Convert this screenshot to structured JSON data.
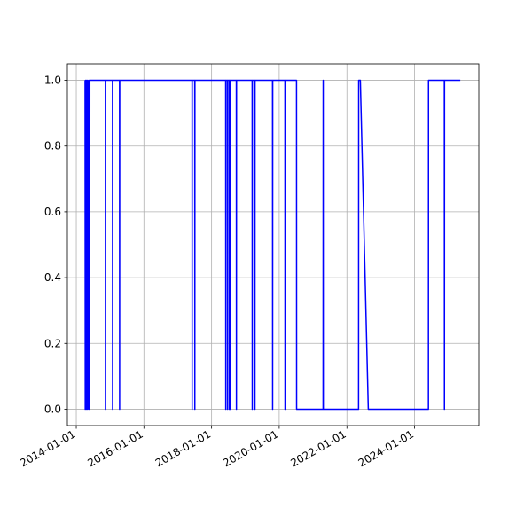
{
  "chart_data": {
    "type": "line",
    "x": [
      "2014-04-06",
      "2014-04-08",
      "2014-04-10",
      "2014-04-20",
      "2014-04-22",
      "2014-05-01",
      "2014-05-03",
      "2014-05-15",
      "2014-05-17",
      "2014-05-25",
      "2014-05-27",
      "2014-11-11",
      "2014-11-12",
      "2014-11-13",
      "2015-01-27",
      "2015-01-28",
      "2015-01-29",
      "2015-04-13",
      "2015-04-14",
      "2015-04-15",
      "2017-06-04",
      "2017-06-05",
      "2017-06-06",
      "2017-07-03",
      "2017-07-04",
      "2017-07-05",
      "2018-06-02",
      "2018-06-03",
      "2018-06-04",
      "2018-06-21",
      "2018-06-22",
      "2018-06-23",
      "2018-07-10",
      "2018-07-11",
      "2018-07-12",
      "2018-07-20",
      "2018-07-21",
      "2018-07-22",
      "2018-09-25",
      "2018-09-26",
      "2018-09-27",
      "2019-03-15",
      "2019-03-16",
      "2019-03-17",
      "2019-04-13",
      "2019-04-14",
      "2019-04-15",
      "2019-10-21",
      "2019-10-22",
      "2019-10-23",
      "2020-03-03",
      "2020-03-04",
      "2020-03-05",
      "2020-07-06",
      "2020-07-07",
      "2021-04-19",
      "2021-04-20",
      "2021-04-21",
      "2022-05-07",
      "2022-05-08",
      "2022-05-26",
      "2022-08-20",
      "2024-05-30",
      "2024-05-31",
      "2024-11-18",
      "2024-11-19",
      "2024-11-20",
      "2025-05-09"
    ],
    "series": [
      {
        "color": "#0000ff",
        "values": [
          1,
          0,
          1,
          0,
          1,
          0,
          1,
          0,
          1,
          0,
          1,
          1,
          0,
          1,
          1,
          0,
          1,
          1,
          0,
          1,
          1,
          0,
          1,
          1,
          0,
          1,
          1,
          0,
          1,
          1,
          0,
          1,
          1,
          0,
          1,
          1,
          0,
          1,
          1,
          0,
          1,
          1,
          0,
          1,
          1,
          0,
          1,
          1,
          0,
          1,
          1,
          0,
          1,
          1,
          0,
          0,
          1,
          0,
          0,
          1,
          1,
          0,
          0,
          1,
          1,
          0,
          1,
          1
        ]
      }
    ],
    "xlim": [
      "2013-09-27",
      "2025-11-25"
    ],
    "xticks": [
      "2014-01-01",
      "2016-01-01",
      "2018-01-01",
      "2020-01-01",
      "2022-01-01",
      "2024-01-01"
    ],
    "ylim": [
      -0.05,
      1.05
    ],
    "yticks": [
      {
        "value": 0,
        "label": "0.0"
      },
      0.2,
      0.4,
      0.6,
      0.8,
      {
        "value": 1,
        "label": "1.0"
      }
    ],
    "grid": true
  }
}
